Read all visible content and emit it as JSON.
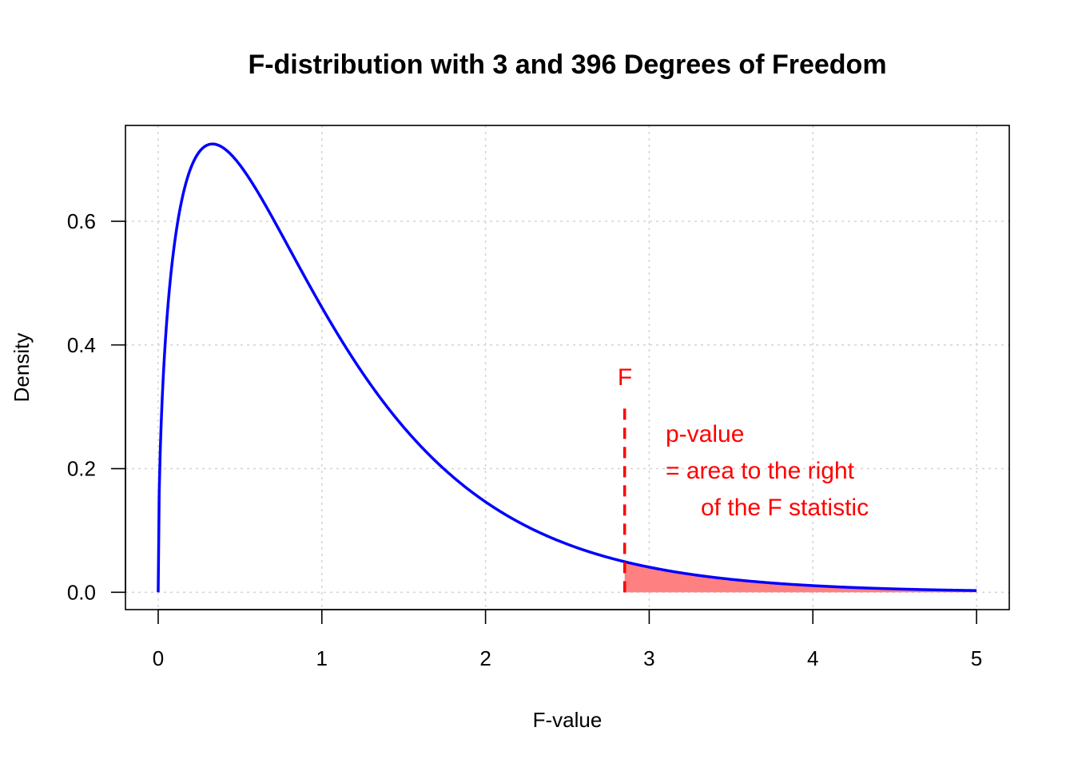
{
  "chart_data": {
    "type": "area",
    "title": "F-distribution with 3 and 396 Degrees of Freedom",
    "xlabel": "F-value",
    "ylabel": "Density",
    "xlim": [
      -0.2,
      5.2
    ],
    "ylim": [
      -0.028,
      0.755
    ],
    "x_ticks": [
      "0",
      "1",
      "2",
      "3",
      "4",
      "5"
    ],
    "y_ticks": [
      "0.0",
      "0.2",
      "0.4",
      "0.6"
    ],
    "grid": true,
    "distribution": {
      "df1": 3,
      "df2": 396,
      "x_range": [
        0,
        5
      ]
    },
    "curve_points": [
      {
        "x": 0.0,
        "y": 0.0
      },
      {
        "x": 0.05,
        "y": 0.41
      },
      {
        "x": 0.1,
        "y": 0.56
      },
      {
        "x": 0.2,
        "y": 0.68
      },
      {
        "x": 0.33,
        "y": 0.725
      },
      {
        "x": 0.5,
        "y": 0.69
      },
      {
        "x": 0.75,
        "y": 0.59
      },
      {
        "x": 1.0,
        "y": 0.47
      },
      {
        "x": 1.5,
        "y": 0.27
      },
      {
        "x": 2.0,
        "y": 0.145
      },
      {
        "x": 2.5,
        "y": 0.075
      },
      {
        "x": 2.85,
        "y": 0.049
      },
      {
        "x": 3.0,
        "y": 0.04
      },
      {
        "x": 3.5,
        "y": 0.02
      },
      {
        "x": 4.0,
        "y": 0.011
      },
      {
        "x": 4.5,
        "y": 0.006
      },
      {
        "x": 5.0,
        "y": 0.003
      }
    ],
    "f_statistic": 2.85,
    "f_line_top": 0.3,
    "shaded_region": {
      "from": 2.85,
      "to": 5.0
    },
    "colors": {
      "curve": "#0000ff",
      "shade": "#ff8080",
      "marker": "#ff0000"
    },
    "annotations": {
      "f_label": "F",
      "pvalue_lines": [
        "p-value",
        "= area to the right",
        "of the F statistic"
      ]
    }
  }
}
